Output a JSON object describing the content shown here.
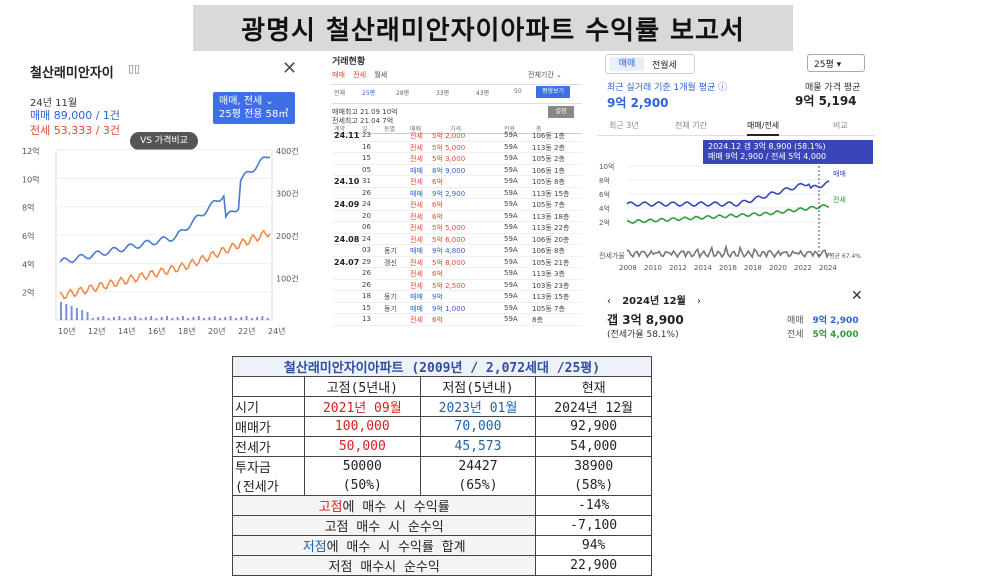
{
  "title": "광명시 철산래미안자이아파트 수익률 보고서",
  "panel1": {
    "name": "철산래미안자이",
    "date": "24년 11월",
    "sale": "매매 89,000 / 1건",
    "rent": "전세 53,333 / 3건",
    "filter_line1": "매매, 전세 ⌄",
    "filter_line2": "25평  전용 58㎡",
    "compare_label": "VS 가격비교",
    "y_left": [
      "12억",
      "10억",
      "8억",
      "6억",
      "4억",
      "2억"
    ],
    "y_right": [
      "400건",
      "300건",
      "200건",
      "100건"
    ],
    "x_ticks": [
      "10년",
      "12년",
      "14년",
      "16년",
      "18년",
      "20년",
      "22년",
      "24년"
    ]
  },
  "panel2": {
    "header": "거래현황",
    "tabs": [
      "매매",
      "전세",
      "월세"
    ],
    "full_period": "전체기간 ⌄",
    "sizes": [
      "전체",
      "25평",
      "28평",
      "33평",
      "43평",
      "50"
    ],
    "btn_all": "평형보기",
    "hi_sale": "매매최고  21.09  10억",
    "hi_rent": "전세최고  21.04  7억",
    "btn_set": "설정",
    "cols": [
      "계약",
      "일",
      "동별",
      "매매",
      "가격",
      "전용",
      "층"
    ],
    "rows": [
      {
        "m": "24.11",
        "d": "23",
        "dong": "",
        "type": "전세",
        "price": "5억 2,000",
        "size": "59A",
        "floor": "106동 1층",
        "blue": false
      },
      {
        "m": "",
        "d": "16",
        "dong": "",
        "type": "전세",
        "price": "5억 5,000",
        "size": "59A",
        "floor": "113동 2층",
        "blue": false
      },
      {
        "m": "",
        "d": "15",
        "dong": "",
        "type": "전세",
        "price": "5억 3,000",
        "size": "59A",
        "floor": "105동 2층",
        "blue": false
      },
      {
        "m": "",
        "d": "05",
        "dong": "",
        "type": "매매",
        "price": "8억 9,000",
        "size": "59A",
        "floor": "106동 1층",
        "blue": true
      },
      {
        "m": "24.10",
        "d": "31",
        "dong": "",
        "type": "전세",
        "price": "6억",
        "size": "59A",
        "floor": "105동 8층",
        "blue": false
      },
      {
        "m": "",
        "d": "26",
        "dong": "",
        "type": "매매",
        "price": "9억 2,900",
        "size": "59A",
        "floor": "113동 15층",
        "blue": true
      },
      {
        "m": "24.09",
        "d": "24",
        "dong": "",
        "type": "전세",
        "price": "6억",
        "size": "59A",
        "floor": "105동 7층",
        "blue": false
      },
      {
        "m": "",
        "d": "20",
        "dong": "",
        "type": "전세",
        "price": "6억",
        "size": "59A",
        "floor": "113동 18층",
        "blue": false
      },
      {
        "m": "",
        "d": "06",
        "dong": "",
        "type": "전세",
        "price": "5억 5,000",
        "size": "59A",
        "floor": "113동 22층",
        "blue": false
      },
      {
        "m": "24.08",
        "d": "24",
        "dong": "",
        "type": "전세",
        "price": "5억 6,000",
        "size": "59A",
        "floor": "106동 20층",
        "blue": false
      },
      {
        "m": "",
        "d": "03",
        "dong": "동기",
        "type": "매매",
        "price": "9억 4,800",
        "size": "59A",
        "floor": "106동 8층",
        "blue": true
      },
      {
        "m": "24.07",
        "d": "29",
        "dong": "갱신",
        "type": "전세",
        "price": "5억 8,000",
        "size": "59A",
        "floor": "105동 21층",
        "blue": false
      },
      {
        "m": "",
        "d": "26",
        "dong": "",
        "type": "전세",
        "price": "6억",
        "size": "59A",
        "floor": "113동 3층",
        "blue": false
      },
      {
        "m": "",
        "d": "26",
        "dong": "",
        "type": "전세",
        "price": "5억 2,500",
        "size": "59A",
        "floor": "103동 23층",
        "blue": false
      },
      {
        "m": "",
        "d": "18",
        "dong": "동기",
        "type": "매매",
        "price": "9억",
        "size": "59A",
        "floor": "113동 15층",
        "blue": true
      },
      {
        "m": "",
        "d": "15",
        "dong": "동기",
        "type": "매매",
        "price": "9억 1,000",
        "size": "59A",
        "floor": "105동 7층",
        "blue": true
      },
      {
        "m": "",
        "d": "13",
        "dong": "",
        "type": "전세",
        "price": "6억",
        "size": "59A",
        "floor": "8층",
        "blue": false
      }
    ]
  },
  "panel3": {
    "tab_sale": "매매",
    "tab_rent": "전월세",
    "select": "25평 ▾",
    "avg_label": "최근 실거래 기준 1개월 평균 ⓘ",
    "avg_value": "9억 2,900",
    "listing_label": "매물 가격 평균",
    "listing_value": "9억 5,194",
    "period_tabs": [
      "최근 3년",
      "전체 기간",
      "매매/전세",
      "비교"
    ],
    "tip_line1": "2024.12  갭 3억 8,900 (58.1%)",
    "tip_line2": "매매 9억 2,900 / 전세 5억 4,000",
    "y_ticks": [
      "10억",
      "8억",
      "6억",
      "4억",
      "2억"
    ],
    "legend_sale": "매매",
    "legend_rent": "전세",
    "ratio_label": "전세가율",
    "ratio_end": "평균 67.4%",
    "x_ticks": [
      "2008",
      "2010",
      "2012",
      "2014",
      "2016",
      "2018",
      "2020",
      "2022",
      "2024"
    ],
    "nav_month": "2024년 12월",
    "gap": "갭 3억 8,900",
    "rate": "(전세가율 58.1%)",
    "sale_label": "매매",
    "sale_value": "9억 2,900",
    "rent_label": "전세",
    "rent_value": "5억 4,000"
  },
  "table": {
    "caption": "철산래미안자이아파트 (2009년 / 2,072세대 /25평)",
    "header": [
      "",
      "고점(5년내)",
      "저점(5년내)",
      "현재"
    ],
    "period": [
      "시기",
      "2021년 09월",
      "2023년 01월",
      "2024년 12월"
    ],
    "sale": [
      "매매가",
      "100,000",
      "70,000",
      "92,900"
    ],
    "rent": [
      "전세가",
      "50,000",
      "45,573",
      "54,000"
    ],
    "invest_a": [
      "투자금",
      "50000",
      "24427",
      "38900"
    ],
    "invest_b": [
      "(전세가",
      "(50%)",
      "(65%)",
      "(58%)"
    ],
    "r1_a": "고점",
    "r1_b": "에 매수 시 수익률",
    "r1_v": "-14%",
    "r2_label": "고점 매수 시 순수익",
    "r2_v": "-7,100",
    "r3_a": "저점",
    "r3_b": "에 매수 시 수익률 합계",
    "r3_v": "94%",
    "r4_label": "저점 매수시 순수익",
    "r4_v": "22,900"
  },
  "colors": {
    "sale": "#2d63d6",
    "rent": "#e2492f",
    "accent": "#3e6ee8"
  }
}
